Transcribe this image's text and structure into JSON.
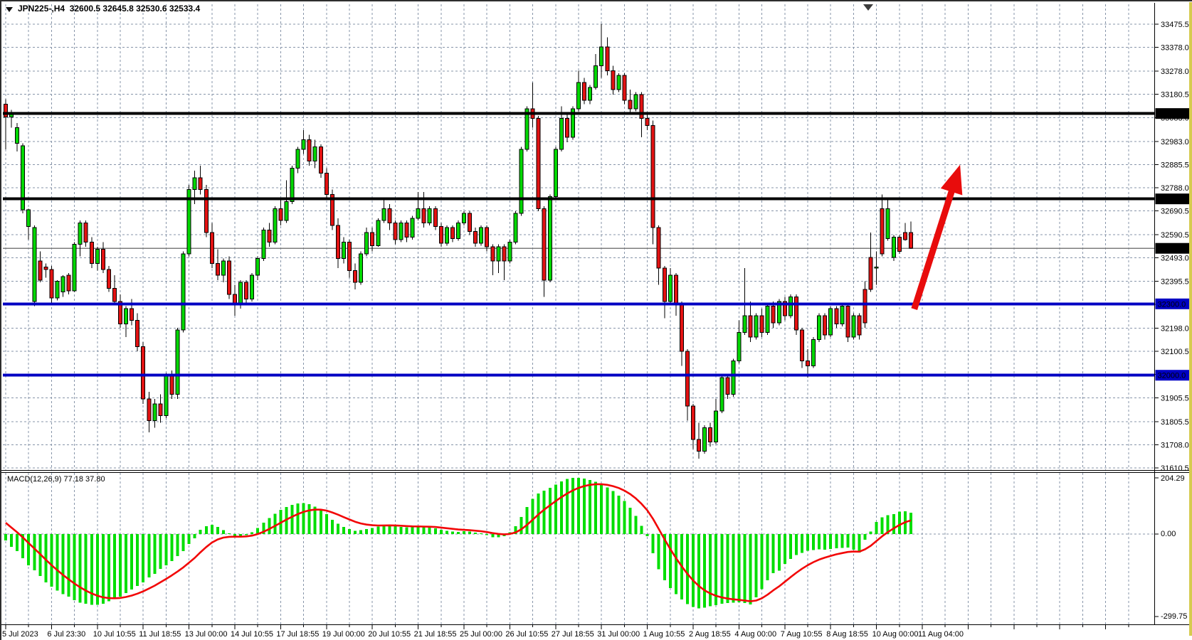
{
  "header": {
    "title": "JPN225-,H4  32600.5 32645.8 32530.6 32533.4"
  },
  "indicator_label": "MACD(12,26,9) 77.18 37.80",
  "colors": {
    "bull": "#00d800",
    "bear": "#e31212",
    "wick": "#000000",
    "grid": "#8795a9",
    "macd_bar": "#00de00",
    "macd_signal": "#f20606",
    "black_line": "#000000",
    "blue_line": "#0000c3",
    "current_line": "#7d7d7d",
    "tag_text": "#ffffff",
    "axis_strip": "#d6cb4f",
    "arrow": "#e80c0c"
  },
  "chart_data": {
    "type": "candlestick",
    "symbol": "JPN225-",
    "timeframe": "H4",
    "current_ohlc": {
      "open": 32600.5,
      "high": 32645.8,
      "low": 32530.6,
      "close": 32533.4
    },
    "price_range": {
      "top": 33475.5,
      "bottom": 31610.5
    },
    "price_axis_ticks": [
      33475.5,
      33378.0,
      33278.0,
      33180.5,
      33083.0,
      32983.0,
      32885.5,
      32788.0,
      32690.5,
      32590.5,
      32493.0,
      32395.5,
      32298.0,
      32198.0,
      32100.5,
      32003.0,
      31905.5,
      31805.5,
      31708.0,
      31610.5
    ],
    "horizontal_lines": [
      {
        "price": 33100.0,
        "label": "33100.0",
        "color": "#000000",
        "tag_bg": "#000000"
      },
      {
        "price": 32741.2,
        "label": "32741.2",
        "color": "#000000",
        "tag_bg": "#000000"
      },
      {
        "price": 32300.0,
        "label": "32300.0",
        "color": "#0000c3",
        "tag_bg": "#0000c3"
      },
      {
        "price": 32000.0,
        "label": "32000.0",
        "color": "#0000c3",
        "tag_bg": "#0000c3"
      }
    ],
    "current_price_line": {
      "price": 32533.4,
      "label": "32533.4",
      "tag_bg": "#000000"
    },
    "x_labels": [
      "5 Jul 2023",
      "6 Jul 23:30",
      "10 Jul 10:55",
      "11 Jul 18:55",
      "13 Jul 00:00",
      "14 Jul 10:55",
      "17 Jul 18:55",
      "19 Jul 00:00",
      "20 Jul 10:55",
      "21 Jul 18:55",
      "25 Jul 00:00",
      "26 Jul 10:55",
      "27 Jul 18:55",
      "31 Jul 00:00",
      "1 Aug 10:55",
      "2 Aug 18:55",
      "4 Aug 00:00",
      "7 Aug 10:55",
      "8 Aug 18:55",
      "10 Aug 00:00",
      "11 Aug 04:00"
    ],
    "candles_per_label": 8,
    "ohlc": [
      [
        33140,
        33160,
        32950,
        33085
      ],
      [
        33085,
        33115,
        33040,
        33105
      ],
      [
        32975,
        33060,
        32940,
        33040
      ],
      [
        32695,
        32975,
        32680,
        32965
      ],
      [
        32625,
        32700,
        32570,
        32695
      ],
      [
        32310,
        32630,
        32290,
        32620
      ],
      [
        32480,
        32520,
        32390,
        32400
      ],
      [
        32455,
        32470,
        32410,
        32445
      ],
      [
        32445,
        32460,
        32300,
        32325
      ],
      [
        32325,
        32400,
        32315,
        32395
      ],
      [
        32350,
        32420,
        32330,
        32415
      ],
      [
        32420,
        32430,
        32340,
        32355
      ],
      [
        32355,
        32560,
        32350,
        32550
      ],
      [
        32550,
        32650,
        32500,
        32640
      ],
      [
        32640,
        32650,
        32540,
        32560
      ],
      [
        32560,
        32580,
        32450,
        32470
      ],
      [
        32470,
        32540,
        32440,
        32530
      ],
      [
        32530,
        32560,
        32430,
        32445
      ],
      [
        32445,
        32460,
        32350,
        32365
      ],
      [
        32365,
        32420,
        32300,
        32310
      ],
      [
        32310,
        32340,
        32200,
        32215
      ],
      [
        32215,
        32290,
        32160,
        32280
      ],
      [
        32280,
        32320,
        32210,
        32230
      ],
      [
        32230,
        32260,
        32100,
        32120
      ],
      [
        32120,
        32140,
        31880,
        31900
      ],
      [
        31900,
        31930,
        31760,
        31810
      ],
      [
        31810,
        31900,
        31780,
        31880
      ],
      [
        31880,
        31920,
        31800,
        31830
      ],
      [
        31830,
        32010,
        31820,
        32000
      ],
      [
        32000,
        32020,
        31900,
        31920
      ],
      [
        31920,
        32200,
        31900,
        32190
      ],
      [
        32190,
        32520,
        32180,
        32510
      ],
      [
        32510,
        32800,
        32500,
        32780
      ],
      [
        32780,
        32860,
        32720,
        32830
      ],
      [
        32830,
        32880,
        32760,
        32780
      ],
      [
        32780,
        32800,
        32580,
        32600
      ],
      [
        32600,
        32640,
        32450,
        32470
      ],
      [
        32470,
        32530,
        32400,
        32420
      ],
      [
        32420,
        32490,
        32390,
        32480
      ],
      [
        32480,
        32500,
        32320,
        32340
      ],
      [
        32340,
        32380,
        32250,
        32300
      ],
      [
        32300,
        32400,
        32280,
        32390
      ],
      [
        32390,
        32400,
        32300,
        32320
      ],
      [
        32320,
        32430,
        32310,
        32420
      ],
      [
        32420,
        32500,
        32400,
        32490
      ],
      [
        32490,
        32620,
        32480,
        32610
      ],
      [
        32610,
        32640,
        32540,
        32560
      ],
      [
        32560,
        32710,
        32550,
        32700
      ],
      [
        32700,
        32740,
        32630,
        32650
      ],
      [
        32650,
        32820,
        32640,
        32730
      ],
      [
        32730,
        32880,
        32720,
        32870
      ],
      [
        32870,
        32960,
        32850,
        32950
      ],
      [
        32950,
        33030,
        32930,
        32990
      ],
      [
        32990,
        33010,
        32880,
        32900
      ],
      [
        32900,
        32990,
        32870,
        32960
      ],
      [
        32960,
        32970,
        32830,
        32850
      ],
      [
        32850,
        32870,
        32740,
        32760
      ],
      [
        32760,
        32780,
        32610,
        32630
      ],
      [
        32630,
        32660,
        32450,
        32490
      ],
      [
        32490,
        32580,
        32470,
        32560
      ],
      [
        32560,
        32570,
        32410,
        32440
      ],
      [
        32440,
        32470,
        32360,
        32390
      ],
      [
        32390,
        32520,
        32380,
        32510
      ],
      [
        32510,
        32620,
        32500,
        32600
      ],
      [
        32600,
        32620,
        32520,
        32545
      ],
      [
        32545,
        32660,
        32540,
        32650
      ],
      [
        32650,
        32740,
        32640,
        32700
      ],
      [
        32700,
        32720,
        32610,
        32640
      ],
      [
        32640,
        32650,
        32550,
        32570
      ],
      [
        32570,
        32650,
        32560,
        32640
      ],
      [
        32640,
        32650,
        32560,
        32580
      ],
      [
        32580,
        32670,
        32570,
        32660
      ],
      [
        32660,
        32770,
        32650,
        32700
      ],
      [
        32700,
        32770,
        32620,
        32640
      ],
      [
        32640,
        32710,
        32630,
        32700
      ],
      [
        32700,
        32710,
        32610,
        32625
      ],
      [
        32625,
        32640,
        32540,
        32555
      ],
      [
        32555,
        32630,
        32545,
        32620
      ],
      [
        32620,
        32630,
        32560,
        32575
      ],
      [
        32575,
        32650,
        32565,
        32640
      ],
      [
        32640,
        32690,
        32630,
        32680
      ],
      [
        32680,
        32690,
        32590,
        32605
      ],
      [
        32605,
        32620,
        32540,
        32555
      ],
      [
        32555,
        32630,
        32545,
        32620
      ],
      [
        32620,
        32630,
        32520,
        32540
      ],
      [
        32540,
        32550,
        32420,
        32480
      ],
      [
        32480,
        32550,
        32430,
        32540
      ],
      [
        32540,
        32550,
        32400,
        32480
      ],
      [
        32480,
        32570,
        32470,
        32560
      ],
      [
        32560,
        32690,
        32550,
        32680
      ],
      [
        32680,
        32960,
        32670,
        32950
      ],
      [
        32950,
        33130,
        32940,
        33120
      ],
      [
        33120,
        33230,
        33040,
        33080
      ],
      [
        33080,
        33090,
        32690,
        32700
      ],
      [
        32700,
        32710,
        32330,
        32400
      ],
      [
        32400,
        32760,
        32390,
        32750
      ],
      [
        32750,
        32960,
        32740,
        32950
      ],
      [
        32950,
        33130,
        32940,
        33080
      ],
      [
        33080,
        33100,
        32980,
        33000
      ],
      [
        33000,
        33130,
        32990,
        33120
      ],
      [
        33120,
        33280,
        33110,
        33230
      ],
      [
        33230,
        33250,
        33140,
        33155
      ],
      [
        33155,
        33220,
        33140,
        33210
      ],
      [
        33210,
        33350,
        33200,
        33300
      ],
      [
        33300,
        33477,
        33250,
        33380
      ],
      [
        33380,
        33420,
        33260,
        33280
      ],
      [
        33280,
        33300,
        33180,
        33200
      ],
      [
        33200,
        33270,
        33190,
        33260
      ],
      [
        33260,
        33270,
        33140,
        33155
      ],
      [
        33155,
        33200,
        33100,
        33120
      ],
      [
        33120,
        33190,
        33110,
        33180
      ],
      [
        33180,
        33190,
        33000,
        33080
      ],
      [
        33080,
        33100,
        33030,
        33050
      ],
      [
        33050,
        33070,
        32550,
        32620
      ],
      [
        32620,
        32630,
        32380,
        32450
      ],
      [
        32450,
        32460,
        32240,
        32310
      ],
      [
        32310,
        32450,
        32300,
        32420
      ],
      [
        32420,
        32430,
        32250,
        32300
      ],
      [
        32300,
        32310,
        32040,
        32100
      ],
      [
        32100,
        32110,
        31810,
        31870
      ],
      [
        31870,
        31880,
        31690,
        31730
      ],
      [
        31730,
        31800,
        31650,
        31680
      ],
      [
        31680,
        31790,
        31670,
        31780
      ],
      [
        31780,
        31800,
        31700,
        31720
      ],
      [
        31720,
        31900,
        31710,
        31850
      ],
      [
        31850,
        32000,
        31840,
        31990
      ],
      [
        31990,
        32000,
        31900,
        31920
      ],
      [
        31920,
        32070,
        31910,
        32060
      ],
      [
        32060,
        32230,
        32050,
        32180
      ],
      [
        32180,
        32450,
        32170,
        32250
      ],
      [
        32250,
        32310,
        32140,
        32160
      ],
      [
        32160,
        32260,
        32150,
        32250
      ],
      [
        32250,
        32280,
        32160,
        32180
      ],
      [
        32180,
        32300,
        32170,
        32290
      ],
      [
        32290,
        32310,
        32200,
        32220
      ],
      [
        32220,
        32320,
        32210,
        32310
      ],
      [
        32310,
        32330,
        32230,
        32250
      ],
      [
        32250,
        32340,
        32240,
        32330
      ],
      [
        32330,
        32340,
        32170,
        32190
      ],
      [
        32190,
        32200,
        32030,
        32060
      ],
      [
        32060,
        32110,
        31990,
        32040
      ],
      [
        32040,
        32160,
        32030,
        32150
      ],
      [
        32150,
        32260,
        32140,
        32250
      ],
      [
        32250,
        32260,
        32150,
        32170
      ],
      [
        32170,
        32290,
        32160,
        32280
      ],
      [
        32280,
        32290,
        32200,
        32215
      ],
      [
        32215,
        32300,
        32205,
        32290
      ],
      [
        32290,
        32300,
        32140,
        32160
      ],
      [
        32160,
        32260,
        32150,
        32250
      ],
      [
        32250,
        32260,
        32150,
        32170
      ],
      [
        32360,
        32395,
        32200,
        32220
      ],
      [
        32495,
        32600,
        32350,
        32360
      ],
      [
        32450,
        32520,
        32380,
        32455
      ],
      [
        32700,
        32760,
        32500,
        32510
      ],
      [
        32575,
        32745,
        32565,
        32700
      ],
      [
        32495,
        32590,
        32480,
        32580
      ],
      [
        32580,
        32590,
        32510,
        32520
      ],
      [
        32600,
        32640,
        32565,
        32570
      ],
      [
        32600.5,
        32645.8,
        32530.6,
        32533.4
      ]
    ],
    "macd": {
      "params": "12,26,9",
      "main_value": 77.18,
      "signal_value": 37.8,
      "axis_ticks": [
        204.29,
        0.0,
        -299.75
      ],
      "range": {
        "top": 204.29,
        "bottom": -299.75
      },
      "signal_seed": 57,
      "signal_alpha": 0.2,
      "histogram": [
        -23,
        -46,
        -62,
        -88,
        -114,
        -132,
        -153,
        -176,
        -192,
        -205,
        -218,
        -228,
        -241,
        -249,
        -254,
        -257,
        -257,
        -254,
        -244,
        -236,
        -228,
        -215,
        -202,
        -189,
        -176,
        -158,
        -145,
        -127,
        -114,
        -98,
        -80,
        -62,
        -36,
        -16,
        15,
        28,
        34,
        26,
        14,
        2,
        -8,
        -10,
        -4,
        6,
        22,
        42,
        58,
        74,
        88,
        98,
        106,
        111,
        112,
        108,
        100,
        88,
        72,
        52,
        38,
        26,
        18,
        12,
        14,
        18,
        22,
        27,
        32,
        33,
        30,
        26,
        24,
        24,
        26,
        26,
        24,
        21,
        16,
        12,
        9,
        8,
        10,
        9,
        5,
        2,
        -4,
        -11,
        -12,
        -8,
        6,
        28,
        62,
        98,
        128,
        148,
        158,
        168,
        180,
        192,
        200,
        204,
        204,
        202,
        197,
        190,
        181,
        170,
        156,
        140,
        120,
        96,
        66,
        30,
        -8,
        -70,
        -128,
        -168,
        -196,
        -218,
        -238,
        -255,
        -265,
        -270,
        -268,
        -262,
        -258,
        -254,
        -251,
        -249,
        -248,
        -251,
        -256,
        -230,
        -200,
        -168,
        -142,
        -133,
        -108,
        -90,
        -76,
        -68,
        -61,
        -58,
        -55,
        -57,
        -54,
        -52,
        -51,
        -49,
        -57,
        -67,
        -21,
        9,
        44,
        61,
        69,
        73,
        82,
        83,
        77.18
      ]
    },
    "annotation": {
      "type": "up-arrow",
      "color": "#e80c0c",
      "from": {
        "bar": 158.6,
        "price": 32278
      },
      "to": {
        "bar": 166.6,
        "price": 32885
      }
    }
  }
}
